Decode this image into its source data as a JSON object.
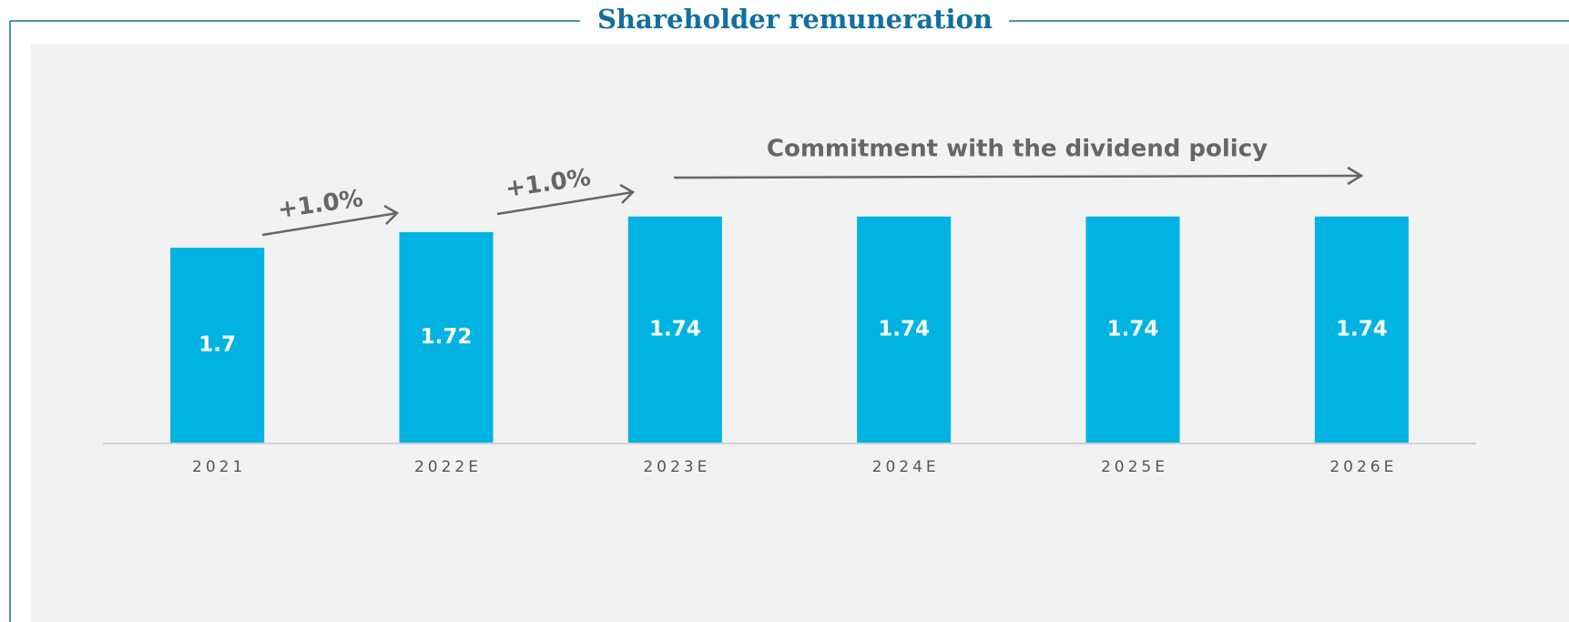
{
  "chart_data": {
    "type": "bar",
    "title": "Shareholder remuneration",
    "categories": [
      "2021",
      "2022E",
      "2023E",
      "2024E",
      "2025E",
      "2026E"
    ],
    "values": [
      1.7,
      1.72,
      1.74,
      1.74,
      1.74,
      1.74
    ],
    "color": "#00b3e3",
    "ylim": [
      1.45,
      1.95
    ],
    "annotations": [
      "+1.0%",
      "+1.0%",
      "Commitment with the dividend policy"
    ]
  }
}
